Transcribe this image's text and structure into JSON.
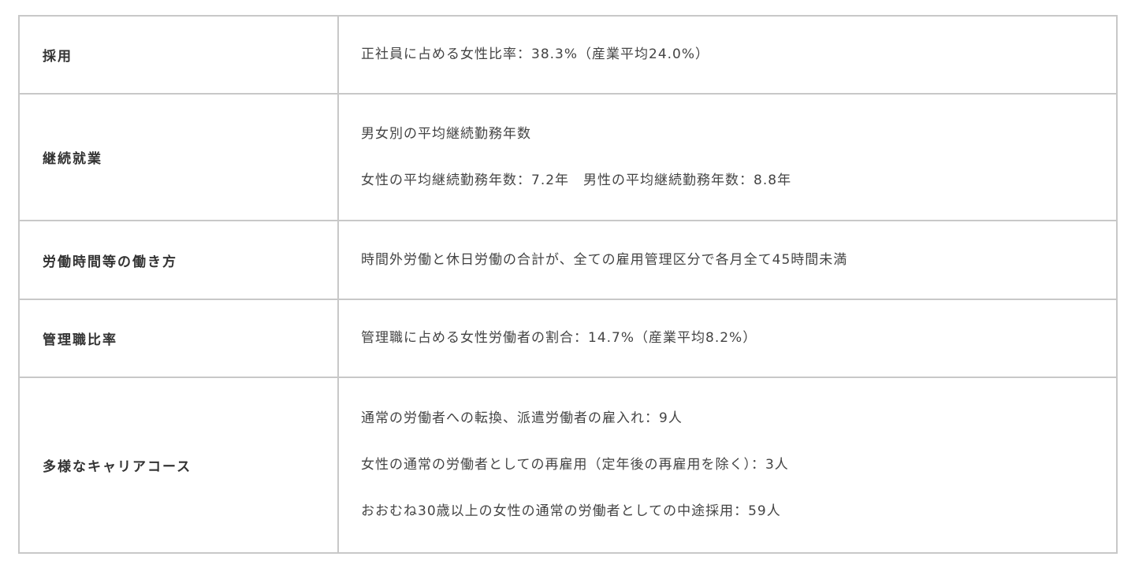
{
  "table": {
    "rows": [
      {
        "label": "採用",
        "lines": [
          "正社員に占める女性比率：38.3%（産業平均24.0%）"
        ]
      },
      {
        "label": "継続就業",
        "lines": [
          "男女別の平均継続勤務年数",
          "女性の平均継続勤務年数：7.2年　男性の平均継続勤務年数：8.8年"
        ]
      },
      {
        "label": "労働時間等の働き方",
        "lines": [
          "時間外労働と休日労働の合計が、全ての雇用管理区分で各月全て45時間未満"
        ]
      },
      {
        "label": "管理職比率",
        "lines": [
          "管理職に占める女性労働者の割合：14.7%（産業平均8.2%）"
        ]
      },
      {
        "label": "多様なキャリアコース",
        "lines": [
          "通常の労働者への転換、派遣労働者の雇入れ：9人",
          "女性の通常の労働者としての再雇用（定年後の再雇用を除く）：3人",
          "おおむね30歳以上の女性の通常の労働者としての中途採用：59人"
        ]
      }
    ]
  }
}
